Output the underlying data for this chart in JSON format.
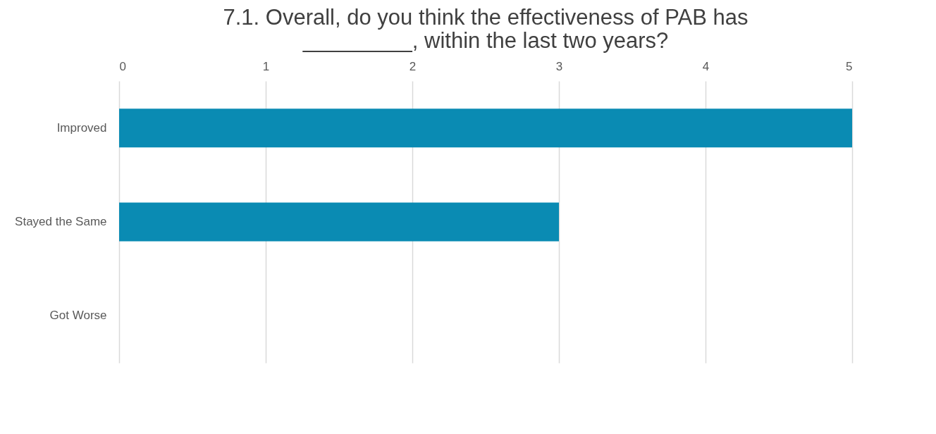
{
  "chart_data": {
    "type": "bar",
    "orientation": "horizontal",
    "title": "7.1. Overall, do you think the effectiveness of PAB has _________, within the last two years?",
    "categories": [
      "Improved",
      "Stayed the Same",
      "Got Worse"
    ],
    "values": [
      5,
      3,
      0
    ],
    "color": "#0a8bb3",
    "xlim": [
      0,
      5
    ],
    "xticks": [
      0,
      1,
      2,
      3,
      4,
      5
    ],
    "grid": "x"
  }
}
